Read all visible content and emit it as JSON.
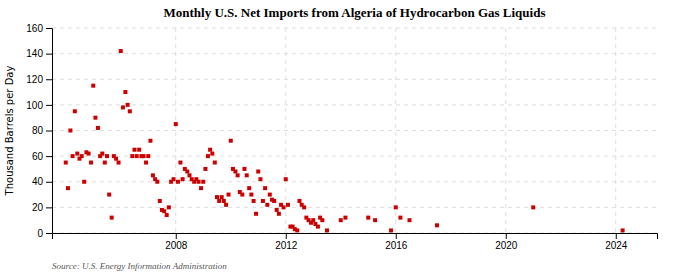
{
  "chart_data": {
    "type": "scatter",
    "title": "Monthly U.S. Net Imports from Algeria of Hydrocarbon Gas Liquids",
    "ylabel": "Thousand Barrels per Day",
    "source": "Source: U.S. Energy Information Administration",
    "color": "#cc0000",
    "marker": "square",
    "grid": true,
    "xlim": [
      2003.5,
      2025.5
    ],
    "xticks": [
      2008,
      2012,
      2016,
      2020,
      2024
    ],
    "ylim": [
      0,
      160
    ],
    "yticks": [
      0,
      20,
      40,
      60,
      80,
      100,
      120,
      140,
      160
    ],
    "x": [
      2004.0,
      2004.08,
      2004.17,
      2004.25,
      2004.33,
      2004.42,
      2004.5,
      2004.58,
      2004.67,
      2004.75,
      2004.83,
      2004.92,
      2005.0,
      2005.08,
      2005.17,
      2005.25,
      2005.33,
      2005.42,
      2005.5,
      2005.58,
      2005.67,
      2005.75,
      2005.83,
      2005.92,
      2006.0,
      2006.08,
      2006.17,
      2006.25,
      2006.33,
      2006.42,
      2006.5,
      2006.58,
      2006.67,
      2006.75,
      2006.83,
      2006.92,
      2007.0,
      2007.08,
      2007.17,
      2007.25,
      2007.33,
      2007.42,
      2007.5,
      2007.58,
      2007.67,
      2007.75,
      2007.83,
      2007.92,
      2008.0,
      2008.08,
      2008.17,
      2008.25,
      2008.33,
      2008.42,
      2008.5,
      2008.58,
      2008.67,
      2008.75,
      2008.83,
      2008.92,
      2009.0,
      2009.08,
      2009.17,
      2009.25,
      2009.33,
      2009.42,
      2009.5,
      2009.58,
      2009.67,
      2009.75,
      2009.83,
      2009.92,
      2010.0,
      2010.08,
      2010.17,
      2010.25,
      2010.33,
      2010.42,
      2010.5,
      2010.58,
      2010.67,
      2010.75,
      2010.83,
      2010.92,
      2011.0,
      2011.08,
      2011.17,
      2011.25,
      2011.33,
      2011.42,
      2011.5,
      2011.58,
      2011.67,
      2011.75,
      2011.83,
      2011.92,
      2012.0,
      2012.08,
      2012.17,
      2012.25,
      2012.33,
      2012.42,
      2012.5,
      2012.58,
      2012.67,
      2012.75,
      2012.83,
      2012.92,
      2013.0,
      2013.08,
      2013.17,
      2013.25,
      2013.33,
      2013.5,
      2014.0,
      2014.17,
      2015.0,
      2015.25,
      2015.83,
      2016.0,
      2016.17,
      2016.5,
      2017.5,
      2021.0,
      2024.25
    ],
    "values": [
      55,
      35,
      80,
      60,
      95,
      62,
      58,
      60,
      40,
      63,
      62,
      55,
      115,
      90,
      82,
      60,
      62,
      55,
      60,
      30,
      12,
      60,
      58,
      55,
      142,
      98,
      110,
      100,
      95,
      60,
      65,
      60,
      65,
      60,
      60,
      55,
      60,
      72,
      45,
      42,
      40,
      25,
      18,
      17,
      14,
      20,
      40,
      42,
      85,
      40,
      55,
      42,
      50,
      48,
      45,
      42,
      40,
      42,
      40,
      35,
      40,
      50,
      60,
      65,
      62,
      55,
      28,
      25,
      28,
      25,
      22,
      30,
      72,
      50,
      48,
      45,
      32,
      30,
      50,
      45,
      35,
      30,
      25,
      15,
      48,
      42,
      25,
      35,
      22,
      30,
      26,
      25,
      18,
      15,
      22,
      20,
      42,
      22,
      5,
      5,
      3,
      2,
      25,
      22,
      20,
      12,
      10,
      8,
      10,
      7,
      5,
      12,
      10,
      2,
      10,
      12,
      12,
      10,
      2,
      20,
      12,
      10,
      6,
      20,
      2
    ]
  }
}
